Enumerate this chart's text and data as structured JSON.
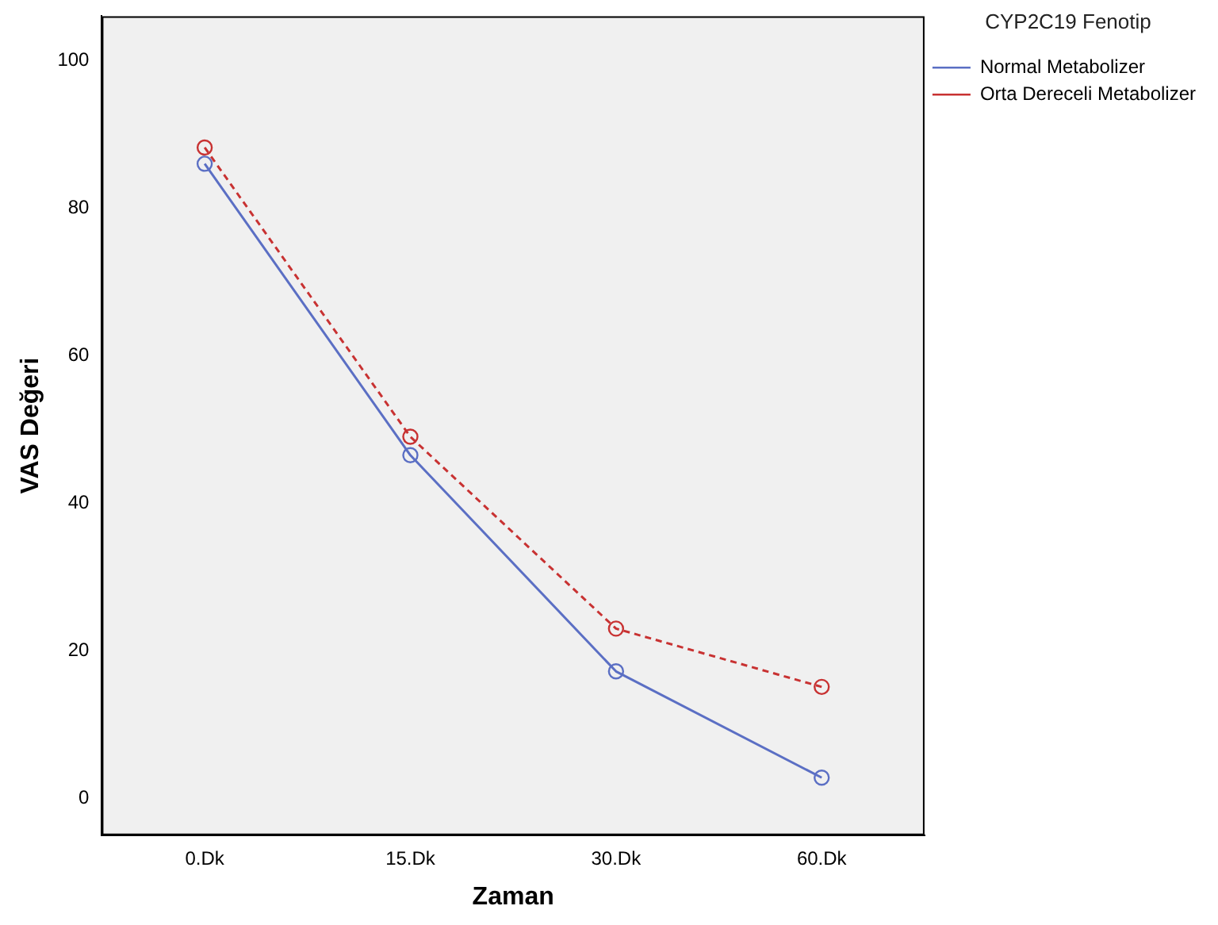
{
  "chart_data": {
    "type": "line",
    "xlabel": "Zaman",
    "ylabel": "VAS Değeri",
    "legend_title": "CYP2C19 Fenotip",
    "categories": [
      "0.Dk",
      "15.Dk",
      "30.Dk",
      "60.Dk"
    ],
    "series": [
      {
        "name": "Normal Metabolizer",
        "color": "#5b6fc4",
        "values": [
          86,
          46.5,
          17.2,
          2.8
        ],
        "line_style": "solid"
      },
      {
        "name": "Orta Dereceli Metabolizer",
        "color": "#c83232",
        "values": [
          88.2,
          49,
          23,
          15.1
        ],
        "line_style": "dashed"
      }
    ],
    "ylim": [
      -5,
      106
    ],
    "yticks": [
      0,
      20,
      40,
      60,
      80,
      100
    ],
    "grid": false,
    "legend": "top right",
    "marker": "circle"
  }
}
